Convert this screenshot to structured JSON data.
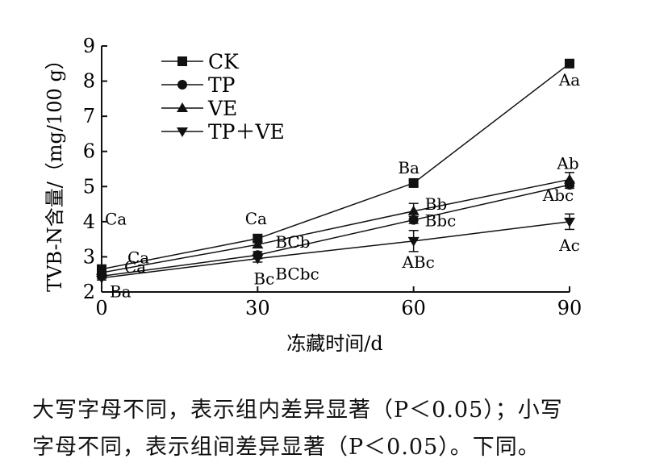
{
  "chart_data": {
    "type": "line",
    "title": "",
    "xlabel": "冻藏时间/d",
    "ylabel": "TVB-N含量/（mg/100 g）",
    "x": [
      0,
      30,
      60,
      90
    ],
    "xticks": [
      "0",
      "30",
      "60",
      "90"
    ],
    "yticks": [
      "2",
      "3",
      "4",
      "5",
      "6",
      "7",
      "8",
      "9"
    ],
    "xlim": [
      0,
      90
    ],
    "ylim": [
      2,
      9
    ],
    "grid": false,
    "legend_position": "top-left",
    "series": [
      {
        "name": "CK",
        "marker": "square",
        "values": [
          2.65,
          3.52,
          5.1,
          8.5
        ],
        "errors": [
          0.08,
          0.08,
          0.08,
          0.08
        ],
        "labels": [
          "Ca",
          "Ca",
          "Ba",
          "Aa"
        ]
      },
      {
        "name": "TP",
        "marker": "circle",
        "values": [
          2.45,
          3.05,
          4.05,
          5.05
        ],
        "errors": [
          0.06,
          0.1,
          0.1,
          0.1
        ],
        "labels": [
          "Ba",
          "BCbc",
          "Bbc",
          "Abc"
        ]
      },
      {
        "name": "VE",
        "marker": "triangle-up",
        "values": [
          2.55,
          3.35,
          4.3,
          5.2
        ],
        "errors": [
          0.06,
          0.08,
          0.22,
          0.2
        ],
        "labels": [
          "Ca",
          "BCb",
          "Bb",
          "Ab"
        ]
      },
      {
        "name": "TP＋VE",
        "marker": "triangle-down",
        "values": [
          2.4,
          2.95,
          3.45,
          4.0
        ],
        "errors": [
          0.06,
          0.1,
          0.3,
          0.22
        ],
        "labels": [
          "Ca",
          "Bc",
          "ABc",
          "Ac"
        ]
      }
    ]
  },
  "notes": {
    "line1": "大写字母不同，表示组内差异显著（P＜0.05）；小写",
    "line2": "字母不同，表示组间差异显著（P＜0.05）。下同。"
  }
}
